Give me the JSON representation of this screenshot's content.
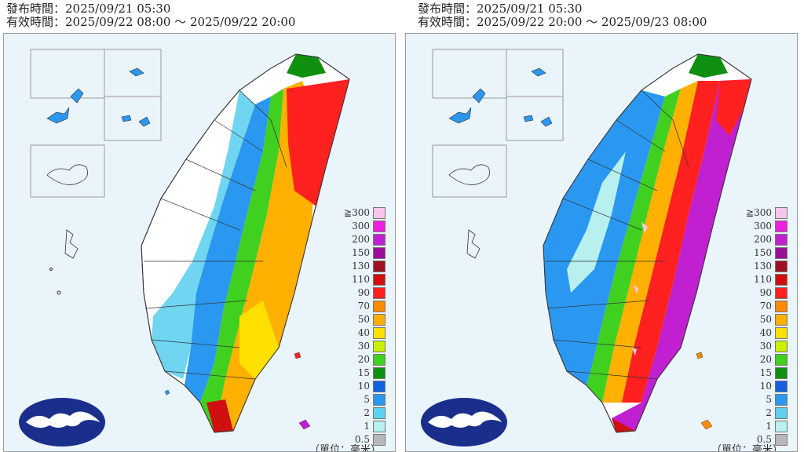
{
  "panels": [
    {
      "issue_label": "發布時間：2025/09/21 05:30",
      "valid_label": "有效時間：2025/09/22 08:00 ～ 2025/09/22 20:00"
    },
    {
      "issue_label": "發布時間：2025/09/21 05:30",
      "valid_label": "有效時間：2025/09/22 20:00 ～ 2025/09/23 08:00"
    }
  ],
  "legend": {
    "levels": [
      "≧300",
      "300",
      "200",
      "150",
      "130",
      "110",
      "90",
      "70",
      "50",
      "40",
      "30",
      "20",
      "15",
      "10",
      "5",
      "2",
      "1",
      "0.5"
    ],
    "colors": [
      "#f7c6ea",
      "#f020e0",
      "#c020d0",
      "#9a109a",
      "#a01020",
      "#d01010",
      "#ff2020",
      "#ff8a00",
      "#ffb000",
      "#ffe000",
      "#c8f000",
      "#40d020",
      "#109010",
      "#1060e0",
      "#2a98f0",
      "#60d0f0",
      "#b8f0f0",
      "#b8b8b8"
    ],
    "unit": "（單位：毫米）"
  },
  "map_colors": {
    "sea": "#eaf4fb",
    "logo": "#1a2f8c"
  }
}
